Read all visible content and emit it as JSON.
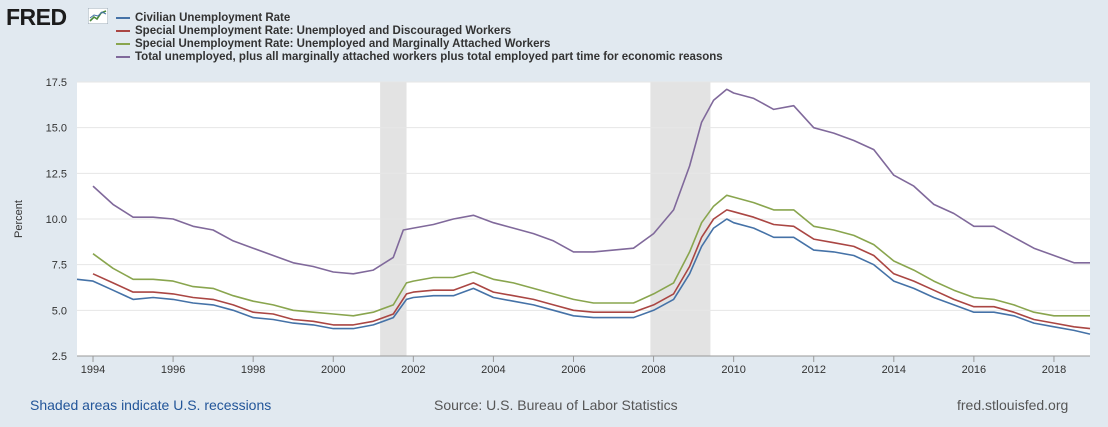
{
  "header": {
    "logo_text": "FRED",
    "logo_icon": "chart-line-icon"
  },
  "footer": {
    "recession_note": "Shaded areas indicate U.S. recessions",
    "source": "Source: U.S. Bureau of Labor Statistics",
    "site": "fred.stlouisfed.org"
  },
  "chart_data": {
    "type": "line",
    "ylabel": "Percent",
    "xlabel": "",
    "xlim": [
      1993.6,
      2018.9
    ],
    "ylim": [
      2.5,
      17.5
    ],
    "yticks": [
      2.5,
      5.0,
      7.5,
      10.0,
      12.5,
      15.0,
      17.5
    ],
    "ytick_labels": [
      "2.5",
      "5.0",
      "7.5",
      "10.0",
      "12.5",
      "15.0",
      "17.5"
    ],
    "xticks": [
      1994,
      1996,
      1998,
      2000,
      2002,
      2004,
      2006,
      2008,
      2010,
      2012,
      2014,
      2016,
      2018
    ],
    "xtick_labels": [
      "1994",
      "1996",
      "1998",
      "2000",
      "2002",
      "2004",
      "2006",
      "2008",
      "2010",
      "2012",
      "2014",
      "2016",
      "2018"
    ],
    "grid": "horizontal",
    "legend_position": "top-left",
    "recessions": [
      [
        2001.17,
        2001.83
      ],
      [
        2007.92,
        2009.42
      ]
    ],
    "series": [
      {
        "name": "Civilian Unemployment Rate",
        "color": "#4572a7",
        "points": [
          [
            1993.6,
            6.7
          ],
          [
            1994,
            6.6
          ],
          [
            1994.5,
            6.1
          ],
          [
            1995,
            5.6
          ],
          [
            1995.5,
            5.7
          ],
          [
            1996,
            5.6
          ],
          [
            1996.5,
            5.4
          ],
          [
            1997,
            5.3
          ],
          [
            1997.5,
            5.0
          ],
          [
            1998,
            4.6
          ],
          [
            1998.5,
            4.5
          ],
          [
            1999,
            4.3
          ],
          [
            1999.5,
            4.2
          ],
          [
            2000,
            4.0
          ],
          [
            2000.5,
            4.0
          ],
          [
            2001,
            4.2
          ],
          [
            2001.5,
            4.6
          ],
          [
            2001.83,
            5.6
          ],
          [
            2002,
            5.7
          ],
          [
            2002.5,
            5.8
          ],
          [
            2003,
            5.8
          ],
          [
            2003.5,
            6.2
          ],
          [
            2004,
            5.7
          ],
          [
            2004.5,
            5.5
          ],
          [
            2005,
            5.3
          ],
          [
            2005.5,
            5.0
          ],
          [
            2006,
            4.7
          ],
          [
            2006.5,
            4.6
          ],
          [
            2007,
            4.6
          ],
          [
            2007.5,
            4.6
          ],
          [
            2008,
            5.0
          ],
          [
            2008.5,
            5.6
          ],
          [
            2008.9,
            7.0
          ],
          [
            2009.2,
            8.5
          ],
          [
            2009.5,
            9.5
          ],
          [
            2009.83,
            10.0
          ],
          [
            2010,
            9.8
          ],
          [
            2010.5,
            9.5
          ],
          [
            2011,
            9.0
          ],
          [
            2011.5,
            9.0
          ],
          [
            2012,
            8.3
          ],
          [
            2012.5,
            8.2
          ],
          [
            2013,
            8.0
          ],
          [
            2013.5,
            7.5
          ],
          [
            2014,
            6.6
          ],
          [
            2014.5,
            6.2
          ],
          [
            2015,
            5.7
          ],
          [
            2015.5,
            5.3
          ],
          [
            2016,
            4.9
          ],
          [
            2016.5,
            4.9
          ],
          [
            2017,
            4.7
          ],
          [
            2017.5,
            4.3
          ],
          [
            2018,
            4.1
          ],
          [
            2018.5,
            3.9
          ],
          [
            2018.9,
            3.7
          ]
        ]
      },
      {
        "name": "Special Unemployment Rate: Unemployed and Discouraged Workers",
        "color": "#aa4643",
        "points": [
          [
            1994,
            7.0
          ],
          [
            1994.5,
            6.5
          ],
          [
            1995,
            6.0
          ],
          [
            1995.5,
            6.0
          ],
          [
            1996,
            5.9
          ],
          [
            1996.5,
            5.7
          ],
          [
            1997,
            5.6
          ],
          [
            1997.5,
            5.3
          ],
          [
            1998,
            4.9
          ],
          [
            1998.5,
            4.8
          ],
          [
            1999,
            4.5
          ],
          [
            1999.5,
            4.4
          ],
          [
            2000,
            4.2
          ],
          [
            2000.5,
            4.2
          ],
          [
            2001,
            4.4
          ],
          [
            2001.5,
            4.8
          ],
          [
            2001.83,
            5.9
          ],
          [
            2002,
            6.0
          ],
          [
            2002.5,
            6.1
          ],
          [
            2003,
            6.1
          ],
          [
            2003.5,
            6.5
          ],
          [
            2004,
            6.0
          ],
          [
            2004.5,
            5.8
          ],
          [
            2005,
            5.6
          ],
          [
            2005.5,
            5.3
          ],
          [
            2006,
            5.0
          ],
          [
            2006.5,
            4.9
          ],
          [
            2007,
            4.9
          ],
          [
            2007.5,
            4.9
          ],
          [
            2008,
            5.3
          ],
          [
            2008.5,
            5.9
          ],
          [
            2008.9,
            7.4
          ],
          [
            2009.2,
            9.0
          ],
          [
            2009.5,
            10.0
          ],
          [
            2009.83,
            10.5
          ],
          [
            2010,
            10.4
          ],
          [
            2010.5,
            10.1
          ],
          [
            2011,
            9.7
          ],
          [
            2011.5,
            9.6
          ],
          [
            2012,
            8.9
          ],
          [
            2012.5,
            8.7
          ],
          [
            2013,
            8.5
          ],
          [
            2013.5,
            8.0
          ],
          [
            2014,
            7.0
          ],
          [
            2014.5,
            6.6
          ],
          [
            2015,
            6.1
          ],
          [
            2015.5,
            5.6
          ],
          [
            2016,
            5.2
          ],
          [
            2016.5,
            5.2
          ],
          [
            2017,
            4.9
          ],
          [
            2017.5,
            4.5
          ],
          [
            2018,
            4.3
          ],
          [
            2018.5,
            4.1
          ],
          [
            2018.9,
            4.0
          ]
        ]
      },
      {
        "name": "Special Unemployment Rate: Unemployed and Marginally Attached Workers",
        "color": "#89a54e",
        "points": [
          [
            1994,
            8.1
          ],
          [
            1994.5,
            7.3
          ],
          [
            1995,
            6.7
          ],
          [
            1995.5,
            6.7
          ],
          [
            1996,
            6.6
          ],
          [
            1996.5,
            6.3
          ],
          [
            1997,
            6.2
          ],
          [
            1997.5,
            5.8
          ],
          [
            1998,
            5.5
          ],
          [
            1998.5,
            5.3
          ],
          [
            1999,
            5.0
          ],
          [
            1999.5,
            4.9
          ],
          [
            2000,
            4.8
          ],
          [
            2000.5,
            4.7
          ],
          [
            2001,
            4.9
          ],
          [
            2001.5,
            5.3
          ],
          [
            2001.83,
            6.5
          ],
          [
            2002,
            6.6
          ],
          [
            2002.5,
            6.8
          ],
          [
            2003,
            6.8
          ],
          [
            2003.5,
            7.1
          ],
          [
            2004,
            6.7
          ],
          [
            2004.5,
            6.5
          ],
          [
            2005,
            6.2
          ],
          [
            2005.5,
            5.9
          ],
          [
            2006,
            5.6
          ],
          [
            2006.5,
            5.4
          ],
          [
            2007,
            5.4
          ],
          [
            2007.5,
            5.4
          ],
          [
            2008,
            5.9
          ],
          [
            2008.5,
            6.5
          ],
          [
            2008.9,
            8.2
          ],
          [
            2009.2,
            9.8
          ],
          [
            2009.5,
            10.7
          ],
          [
            2009.83,
            11.3
          ],
          [
            2010,
            11.2
          ],
          [
            2010.5,
            10.9
          ],
          [
            2011,
            10.5
          ],
          [
            2011.5,
            10.5
          ],
          [
            2012,
            9.6
          ],
          [
            2012.5,
            9.4
          ],
          [
            2013,
            9.1
          ],
          [
            2013.5,
            8.6
          ],
          [
            2014,
            7.7
          ],
          [
            2014.5,
            7.2
          ],
          [
            2015,
            6.6
          ],
          [
            2015.5,
            6.1
          ],
          [
            2016,
            5.7
          ],
          [
            2016.5,
            5.6
          ],
          [
            2017,
            5.3
          ],
          [
            2017.5,
            4.9
          ],
          [
            2018,
            4.7
          ],
          [
            2018.5,
            4.7
          ],
          [
            2018.9,
            4.7
          ]
        ]
      },
      {
        "name": "Total unemployed, plus all marginally attached workers plus total employed part time for economic reasons",
        "color": "#80699b",
        "points": [
          [
            1994,
            11.8
          ],
          [
            1994.5,
            10.8
          ],
          [
            1995,
            10.1
          ],
          [
            1995.5,
            10.1
          ],
          [
            1996,
            10.0
          ],
          [
            1996.5,
            9.6
          ],
          [
            1997,
            9.4
          ],
          [
            1997.5,
            8.8
          ],
          [
            1998,
            8.4
          ],
          [
            1998.5,
            8.0
          ],
          [
            1999,
            7.6
          ],
          [
            1999.5,
            7.4
          ],
          [
            2000,
            7.1
          ],
          [
            2000.5,
            7.0
          ],
          [
            2001,
            7.2
          ],
          [
            2001.5,
            7.9
          ],
          [
            2001.75,
            9.4
          ],
          [
            2002,
            9.5
          ],
          [
            2002.5,
            9.7
          ],
          [
            2003,
            10.0
          ],
          [
            2003.5,
            10.2
          ],
          [
            2004,
            9.8
          ],
          [
            2004.5,
            9.5
          ],
          [
            2005,
            9.2
          ],
          [
            2005.5,
            8.8
          ],
          [
            2006,
            8.2
          ],
          [
            2006.5,
            8.2
          ],
          [
            2007,
            8.3
          ],
          [
            2007.5,
            8.4
          ],
          [
            2008,
            9.2
          ],
          [
            2008.5,
            10.5
          ],
          [
            2008.9,
            12.9
          ],
          [
            2009.2,
            15.3
          ],
          [
            2009.5,
            16.5
          ],
          [
            2009.83,
            17.1
          ],
          [
            2010,
            16.9
          ],
          [
            2010.5,
            16.6
          ],
          [
            2011,
            16.0
          ],
          [
            2011.5,
            16.2
          ],
          [
            2012,
            15.0
          ],
          [
            2012.5,
            14.7
          ],
          [
            2013,
            14.3
          ],
          [
            2013.5,
            13.8
          ],
          [
            2014,
            12.4
          ],
          [
            2014.5,
            11.8
          ],
          [
            2015,
            10.8
          ],
          [
            2015.5,
            10.3
          ],
          [
            2016,
            9.6
          ],
          [
            2016.5,
            9.6
          ],
          [
            2017,
            9.0
          ],
          [
            2017.5,
            8.4
          ],
          [
            2018,
            8.0
          ],
          [
            2018.5,
            7.6
          ],
          [
            2018.9,
            7.6
          ]
        ]
      }
    ]
  }
}
